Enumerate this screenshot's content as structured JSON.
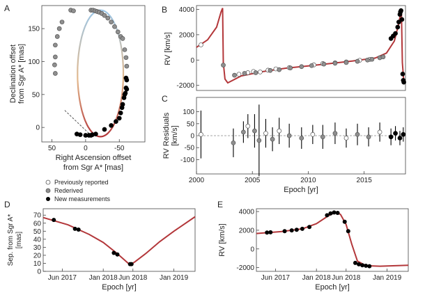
{
  "colors": {
    "orbit_blue": "#9cc6e6",
    "orbit_tan": "#e3b98d",
    "orbit_red": "#b3373a",
    "previously_reported": "#ffffff",
    "rederived": "#8f8f8f",
    "new_measurements": "#000000",
    "line_of_nodes": "#555555"
  },
  "legend": {
    "previously_reported": "Previously reported",
    "rederived": "Rederived",
    "new_measurements": "New measurements"
  },
  "chart_data": [
    {
      "id": "A",
      "panel_label": "A",
      "type": "scatter",
      "title": "",
      "xlabel_line1": "Right Ascension offset",
      "xlabel_line2": "from Sgr A* [mas]",
      "ylabel_line1": "Declination offset",
      "ylabel_line2": "from Sgr A* [mas]",
      "xlim": [
        65,
        -88
      ],
      "ylim": [
        -22,
        185
      ],
      "xticks": [
        50,
        0,
        -50
      ],
      "xtick_labels": [
        "50",
        "0",
        "-50"
      ],
      "yticks": [
        0,
        50,
        100,
        150
      ],
      "ytick_labels": [
        "0",
        "50",
        "100",
        "150"
      ],
      "orbit_note": "Ellipse centred near (-22, 82) with apoapsis near (-15, 178) and periapsis near (-10, -14)",
      "series": [
        {
          "name": "Rederived",
          "points": [
            [
              -8,
              178
            ],
            [
              -11,
              178
            ],
            [
              -14,
              177
            ],
            [
              -17,
              176
            ],
            [
              -20,
              175
            ],
            [
              -24,
              173
            ],
            [
              -28,
              170
            ],
            [
              -33,
              166
            ],
            [
              -38,
              160
            ],
            [
              -43,
              153
            ],
            [
              -48,
              145
            ],
            [
              -52,
              138
            ],
            [
              22,
              178
            ],
            [
              18,
              177
            ],
            [
              35,
              160
            ],
            [
              39,
              150
            ],
            [
              42,
              138
            ],
            [
              45,
              125
            ],
            [
              45,
              107
            ],
            [
              46,
              95
            ],
            [
              45,
              82
            ],
            [
              -55,
              135
            ],
            [
              -58,
              118
            ],
            [
              -60,
              106
            ],
            [
              -61,
              93
            ]
          ]
        },
        {
          "name": "New measurements",
          "points": [
            [
              -60,
              75
            ],
            [
              -61,
              72
            ],
            [
              -60,
              60
            ],
            [
              -61,
              58
            ],
            [
              -59,
              52
            ],
            [
              -58,
              50
            ],
            [
              -57,
              45
            ],
            [
              -55,
              35
            ],
            [
              -54,
              30
            ],
            [
              -52,
              22
            ],
            [
              -50,
              14
            ],
            [
              -45,
              9
            ],
            [
              -38,
              3
            ],
            [
              -28,
              -3
            ],
            [
              -15,
              -10
            ],
            [
              -10,
              -11
            ],
            [
              -8,
              -12
            ],
            [
              -5,
              -12
            ],
            [
              0,
              -12
            ],
            [
              8,
              -11
            ],
            [
              13,
              -10
            ]
          ]
        }
      ],
      "node_line": [
        [
          31,
          26
        ],
        [
          -10,
          -14
        ]
      ]
    },
    {
      "id": "B",
      "panel_label": "B",
      "type": "scatter",
      "xlabel": "",
      "ylabel": "RV [km/s]",
      "xlim": [
        2000,
        2018.7
      ],
      "ylim": [
        -2400,
        4300
      ],
      "yticks": [
        -2000,
        0,
        2000,
        4000
      ],
      "ytick_labels": [
        "-2000",
        "0",
        "2000",
        "4000"
      ],
      "series": [
        {
          "name": "Previously reported",
          "points": [
            [
              2000.4,
              1200
            ],
            [
              2003.8,
              -1120
            ],
            [
              2004.6,
              -1000
            ],
            [
              2005.1,
              -900
            ],
            [
              2005.7,
              -940
            ],
            [
              2006.4,
              -800
            ],
            [
              2007.1,
              -700
            ],
            [
              2008.3,
              -600
            ],
            [
              2010.5,
              -380
            ],
            [
              2011.3,
              -280
            ],
            [
              2012.4,
              -220
            ],
            [
              2013.4,
              -150
            ],
            [
              2014.6,
              -20
            ],
            [
              2015.5,
              50
            ]
          ]
        },
        {
          "name": "Rederived",
          "points": [
            [
              2002.4,
              -400
            ],
            [
              2003.4,
              -1200
            ],
            [
              2004.3,
              -1050
            ],
            [
              2005.3,
              -1000
            ],
            [
              2006.6,
              -820
            ],
            [
              2007.4,
              -760
            ],
            [
              2008.4,
              -620
            ],
            [
              2009.4,
              -520
            ],
            [
              2010.3,
              -440
            ],
            [
              2011.4,
              -320
            ],
            [
              2012.4,
              -250
            ],
            [
              2013.4,
              -200
            ],
            [
              2014.4,
              -100
            ],
            [
              2015.3,
              0
            ],
            [
              2015.7,
              60
            ],
            [
              2016.4,
              180
            ],
            [
              2016.7,
              250
            ]
          ]
        },
        {
          "name": "New measurements",
          "points": [
            [
              2017.4,
              1700
            ],
            [
              2017.6,
              1900
            ],
            [
              2017.8,
              2100
            ],
            [
              2018.0,
              2600
            ],
            [
              2018.1,
              3000
            ],
            [
              2018.2,
              3600
            ],
            [
              2018.25,
              3800
            ],
            [
              2018.3,
              3900
            ],
            [
              2018.38,
              3200
            ],
            [
              2018.45,
              -1100
            ],
            [
              2018.5,
              -1600
            ],
            [
              2018.55,
              -1750
            ]
          ]
        }
      ],
      "model_curve": [
        [
          2000.0,
          1000
        ],
        [
          2001.0,
          1600
        ],
        [
          2001.8,
          2600
        ],
        [
          2002.2,
          3800
        ],
        [
          2002.34,
          4100
        ],
        [
          2002.4,
          -200
        ],
        [
          2002.55,
          -1500
        ],
        [
          2002.8,
          -1800
        ],
        [
          2004,
          -1250
        ],
        [
          2006,
          -900
        ],
        [
          2008,
          -640
        ],
        [
          2010,
          -460
        ],
        [
          2012,
          -270
        ],
        [
          2014,
          -70
        ],
        [
          2016,
          160
        ],
        [
          2017,
          550
        ],
        [
          2017.7,
          1500
        ],
        [
          2018.1,
          2900
        ],
        [
          2018.33,
          4000
        ],
        [
          2018.42,
          -200
        ],
        [
          2018.55,
          -1700
        ],
        [
          2018.7,
          -1800
        ]
      ]
    },
    {
      "id": "C",
      "panel_label": "C",
      "type": "scatter",
      "xlabel": "Epoch [yr]",
      "ylabel_line1": "RV Residuals",
      "ylabel_line2": "[km/s]",
      "xlim": [
        2000,
        2018.7
      ],
      "ylim": [
        -160,
        160
      ],
      "xticks": [
        2000,
        2005,
        2010,
        2015
      ],
      "xtick_labels": [
        "2000",
        "2005",
        "2010",
        "2015"
      ],
      "yticks": [
        -100,
        -50,
        0,
        50,
        100
      ],
      "ytick_labels": [
        "-100",
        "-50",
        "0",
        "50",
        "100"
      ],
      "points": [
        {
          "x": 2000.4,
          "y": 5,
          "err": 100,
          "kind": "prev"
        },
        {
          "x": 2003.3,
          "y": -30,
          "err": 60,
          "kind": "rederived"
        },
        {
          "x": 2004.2,
          "y": 15,
          "err": 45,
          "kind": "rederived"
        },
        {
          "x": 2004.6,
          "y": 40,
          "err": 50,
          "kind": "prev"
        },
        {
          "x": 2005.2,
          "y": 20,
          "err": 70,
          "kind": "rederived"
        },
        {
          "x": 2005.6,
          "y": -20,
          "err": 150,
          "kind": "rederived"
        },
        {
          "x": 2006.2,
          "y": 10,
          "err": 60,
          "kind": "prev"
        },
        {
          "x": 2006.8,
          "y": -15,
          "err": 50,
          "kind": "rederived"
        },
        {
          "x": 2007.4,
          "y": 20,
          "err": 55,
          "kind": "prev"
        },
        {
          "x": 2008.3,
          "y": 0,
          "err": 50,
          "kind": "rederived"
        },
        {
          "x": 2009.4,
          "y": -10,
          "err": 45,
          "kind": "rederived"
        },
        {
          "x": 2010.4,
          "y": 5,
          "err": 40,
          "kind": "prev"
        },
        {
          "x": 2011.3,
          "y": -5,
          "err": 50,
          "kind": "rederived"
        },
        {
          "x": 2012.4,
          "y": 10,
          "err": 45,
          "kind": "rederived"
        },
        {
          "x": 2013.4,
          "y": -10,
          "err": 40,
          "kind": "prev"
        },
        {
          "x": 2014.4,
          "y": 5,
          "err": 45,
          "kind": "rederived"
        },
        {
          "x": 2015.4,
          "y": -5,
          "err": 40,
          "kind": "rederived"
        },
        {
          "x": 2016.4,
          "y": 15,
          "err": 40,
          "kind": "prev"
        },
        {
          "x": 2017.4,
          "y": -5,
          "err": 35,
          "kind": "new"
        },
        {
          "x": 2017.8,
          "y": 10,
          "err": 30,
          "kind": "new"
        },
        {
          "x": 2018.2,
          "y": -10,
          "err": 30,
          "kind": "new"
        },
        {
          "x": 2018.5,
          "y": 5,
          "err": 30,
          "kind": "new"
        }
      ]
    },
    {
      "id": "D",
      "panel_label": "D",
      "type": "line",
      "xlabel": "Epoch [yr]",
      "ylabel_line1": "Sep. from Sgr A*",
      "ylabel_line2": "[mas]",
      "xlim": [
        2017.15,
        2019.3
      ],
      "ylim": [
        0,
        78
      ],
      "xticks": [
        2017.42,
        2018.0,
        2018.42,
        2019.0
      ],
      "xtick_labels": [
        "Jun 2017",
        "Jan 2018",
        "Jun 2018",
        "Jan 2019"
      ],
      "yticks": [
        0,
        10,
        20,
        30,
        40,
        50,
        60,
        70
      ],
      "ytick_labels": [
        "0",
        "10",
        "20",
        "30",
        "40",
        "50",
        "60",
        "70"
      ],
      "points": [
        [
          2017.3,
          64
        ],
        [
          2017.6,
          53
        ],
        [
          2017.65,
          52
        ],
        [
          2018.15,
          23
        ],
        [
          2018.2,
          21
        ],
        [
          2018.38,
          9
        ],
        [
          2018.4,
          9
        ]
      ],
      "model_curve": [
        [
          2017.15,
          67
        ],
        [
          2017.5,
          58
        ],
        [
          2017.8,
          46
        ],
        [
          2018.0,
          36
        ],
        [
          2018.2,
          22
        ],
        [
          2018.33,
          12
        ],
        [
          2018.38,
          8
        ],
        [
          2018.45,
          12
        ],
        [
          2018.6,
          22
        ],
        [
          2018.8,
          37
        ],
        [
          2019.0,
          50
        ],
        [
          2019.3,
          68
        ]
      ]
    },
    {
      "id": "E",
      "panel_label": "E",
      "type": "line",
      "xlabel": "Epoch [yr]",
      "ylabel": "RV [km/s]",
      "xlim": [
        2017.15,
        2019.3
      ],
      "ylim": [
        -2400,
        4300
      ],
      "xticks": [
        2017.42,
        2018.0,
        2018.42,
        2019.0
      ],
      "xtick_labels": [
        "Jun 2017",
        "Jan 2018",
        "Jun 2018",
        "Jan 2019"
      ],
      "yticks": [
        -2000,
        0,
        2000,
        4000
      ],
      "ytick_labels": [
        "-2000",
        "0",
        "2000",
        "4000"
      ],
      "points": [
        [
          2017.3,
          1750
        ],
        [
          2017.35,
          1780
        ],
        [
          2017.55,
          1900
        ],
        [
          2017.65,
          1980
        ],
        [
          2017.72,
          2050
        ],
        [
          2017.8,
          2150
        ],
        [
          2017.9,
          2350
        ],
        [
          2018.15,
          3600
        ],
        [
          2018.2,
          3800
        ],
        [
          2018.25,
          3900
        ],
        [
          2018.3,
          3850
        ],
        [
          2018.4,
          2900
        ],
        [
          2018.45,
          1900
        ],
        [
          2018.55,
          -1500
        ],
        [
          2018.6,
          -1650
        ],
        [
          2018.65,
          -1750
        ],
        [
          2018.7,
          -1800
        ],
        [
          2018.75,
          -1850
        ]
      ],
      "model_curve": [
        [
          2017.15,
          1650
        ],
        [
          2017.5,
          1850
        ],
        [
          2017.8,
          2150
        ],
        [
          2018.0,
          2700
        ],
        [
          2018.15,
          3450
        ],
        [
          2018.27,
          3950
        ],
        [
          2018.34,
          3700
        ],
        [
          2018.42,
          2600
        ],
        [
          2018.5,
          500
        ],
        [
          2018.58,
          -1300
        ],
        [
          2018.7,
          -1800
        ],
        [
          2018.9,
          -1850
        ],
        [
          2019.3,
          -1750
        ]
      ]
    }
  ]
}
